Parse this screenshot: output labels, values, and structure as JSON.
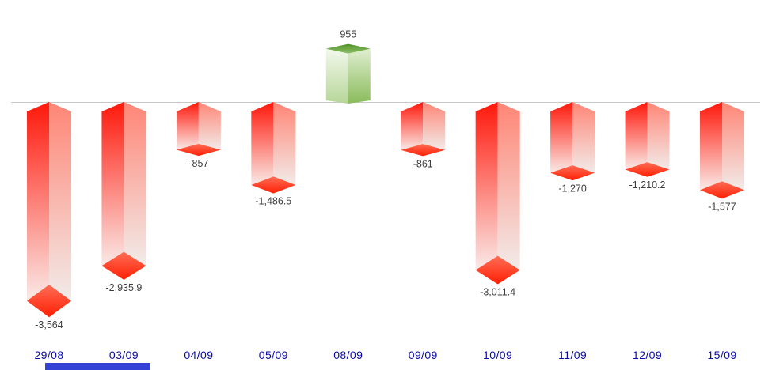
{
  "chart_data": {
    "type": "bar",
    "style": "3d-prism-columns",
    "orientation": "vertical",
    "title": "",
    "xlabel": "",
    "ylabel": "",
    "grid": false,
    "legend_position": "none",
    "baseline_value": 0,
    "categories": [
      "29/08",
      "03/09",
      "04/09",
      "05/09",
      "08/09",
      "09/09",
      "10/09",
      "11/09",
      "12/09",
      "15/09"
    ],
    "values": [
      -3564,
      -2935.9,
      -857,
      -1486.5,
      955,
      -861,
      -3011.4,
      -1270,
      -1210.2,
      -1577
    ],
    "value_labels": [
      "-3,564",
      "-2,935.9",
      "-857",
      "-1,486.5",
      "955",
      "-861",
      "-3,011.4",
      "-1,270",
      "-1,210.2",
      "-1,577"
    ],
    "ylim": [
      -3700,
      1100
    ],
    "colors": {
      "negative_face_left": [
        "#ff170a",
        "#faeae7"
      ],
      "negative_face_right": [
        "#ff8575",
        "#f2ebe9"
      ],
      "negative_cap": [
        "#ff6d56",
        "#ff1f04"
      ],
      "positive_face_left": [
        "#f2f8ec",
        "#b7d698"
      ],
      "positive_face_right": [
        "#dfeed0",
        "#8abb5b"
      ],
      "positive_cap": [
        "#4e9027",
        "#8ec167"
      ],
      "value_label": "#3d3d3d",
      "axis_tick_label": "#0a0aa8",
      "baseline_line": "#c8c8c8"
    }
  },
  "bottom_bar": {
    "color": "#3443d6"
  }
}
